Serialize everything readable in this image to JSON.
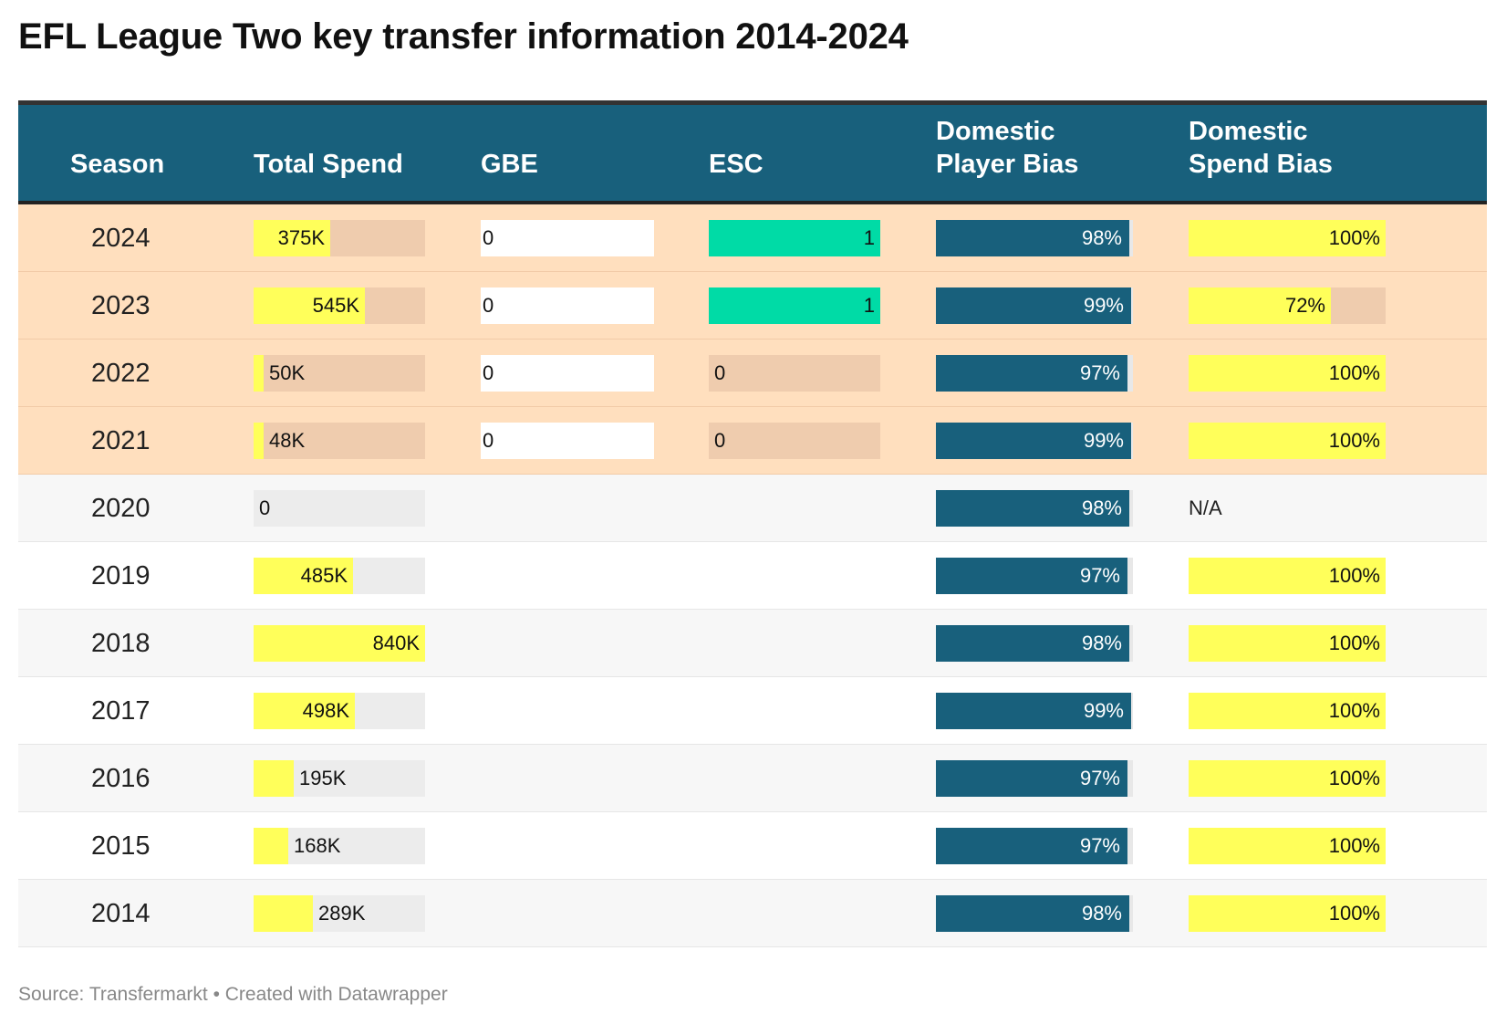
{
  "title": "EFL League Two key transfer information 2014-2024",
  "footer": "Source: Transfermarkt • Created with Datawrapper",
  "colors": {
    "header_bg": "#18607c",
    "highlight_row": "#ffdfbe",
    "row_alt": "#f7f7f7",
    "spend_bar": "#ffff5a",
    "esc_bar": "#00dba6",
    "player_bias_bar": "#18607c"
  },
  "chart_data": {
    "type": "table",
    "columns": [
      "Season",
      "Total Spend",
      "GBE",
      "ESC",
      "Domestic\nPlayer Bias",
      "Domestic\nSpend Bias"
    ],
    "spend_max": 840,
    "esc_max": 1,
    "highlight_seasons": [
      "2024",
      "2023",
      "2022",
      "2021"
    ],
    "rows": [
      {
        "season": "2024",
        "total_spend": 375,
        "total_spend_label": "375K",
        "gbe": "0",
        "esc": 1,
        "esc_label": "1",
        "player_bias": 98,
        "player_bias_label": "98%",
        "spend_bias": 100,
        "spend_bias_label": "100%"
      },
      {
        "season": "2023",
        "total_spend": 545,
        "total_spend_label": "545K",
        "gbe": "0",
        "esc": 1,
        "esc_label": "1",
        "player_bias": 99,
        "player_bias_label": "99%",
        "spend_bias": 72,
        "spend_bias_label": "72%"
      },
      {
        "season": "2022",
        "total_spend": 50,
        "total_spend_label": "50K",
        "gbe": "0",
        "esc": 0,
        "esc_label": "0",
        "player_bias": 97,
        "player_bias_label": "97%",
        "spend_bias": 100,
        "spend_bias_label": "100%"
      },
      {
        "season": "2021",
        "total_spend": 48,
        "total_spend_label": "48K",
        "gbe": "0",
        "esc": 0,
        "esc_label": "0",
        "player_bias": 99,
        "player_bias_label": "99%",
        "spend_bias": 100,
        "spend_bias_label": "100%"
      },
      {
        "season": "2020",
        "total_spend": 0,
        "total_spend_label": "0",
        "gbe": null,
        "esc": null,
        "esc_label": null,
        "player_bias": 98,
        "player_bias_label": "98%",
        "spend_bias": null,
        "spend_bias_label": "N/A"
      },
      {
        "season": "2019",
        "total_spend": 485,
        "total_spend_label": "485K",
        "gbe": null,
        "esc": null,
        "esc_label": null,
        "player_bias": 97,
        "player_bias_label": "97%",
        "spend_bias": 100,
        "spend_bias_label": "100%"
      },
      {
        "season": "2018",
        "total_spend": 840,
        "total_spend_label": "840K",
        "gbe": null,
        "esc": null,
        "esc_label": null,
        "player_bias": 98,
        "player_bias_label": "98%",
        "spend_bias": 100,
        "spend_bias_label": "100%"
      },
      {
        "season": "2017",
        "total_spend": 498,
        "total_spend_label": "498K",
        "gbe": null,
        "esc": null,
        "esc_label": null,
        "player_bias": 99,
        "player_bias_label": "99%",
        "spend_bias": 100,
        "spend_bias_label": "100%"
      },
      {
        "season": "2016",
        "total_spend": 195,
        "total_spend_label": "195K",
        "gbe": null,
        "esc": null,
        "esc_label": null,
        "player_bias": 97,
        "player_bias_label": "97%",
        "spend_bias": 100,
        "spend_bias_label": "100%"
      },
      {
        "season": "2015",
        "total_spend": 168,
        "total_spend_label": "168K",
        "gbe": null,
        "esc": null,
        "esc_label": null,
        "player_bias": 97,
        "player_bias_label": "97%",
        "spend_bias": 100,
        "spend_bias_label": "100%"
      },
      {
        "season": "2014",
        "total_spend": 289,
        "total_spend_label": "289K",
        "gbe": null,
        "esc": null,
        "esc_label": null,
        "player_bias": 98,
        "player_bias_label": "98%",
        "spend_bias": 100,
        "spend_bias_label": "100%"
      }
    ]
  }
}
